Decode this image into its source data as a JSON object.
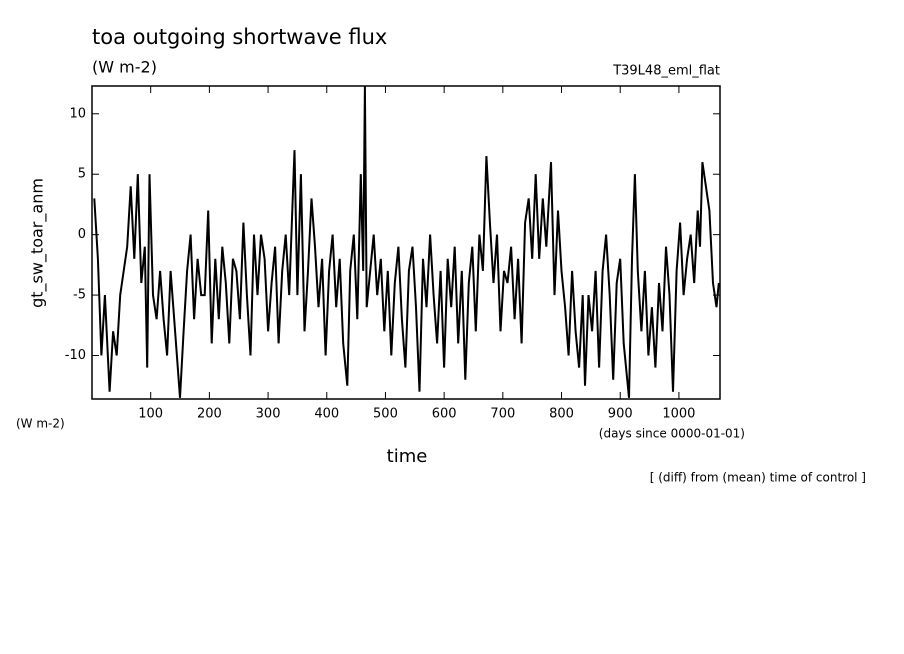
{
  "chart_data": {
    "type": "line",
    "title": "toa outgoing shortwave flux",
    "subtitle": "(W m-2)",
    "run_label": "T39L48_eml_flat",
    "ylabel": "gt_sw_toar_anm",
    "yunit": "(W m-2)",
    "xunit": "(days since 0000-01-01)",
    "xlabel": "time",
    "annotation": "[ (diff) from (mean) time of control ]",
    "xlim": [
      0,
      1070
    ],
    "ylim": [
      -13.6,
      12.3
    ],
    "xticks": [
      100,
      200,
      300,
      400,
      500,
      600,
      700,
      800,
      900,
      1000
    ],
    "yticks": [
      -10,
      -5,
      0,
      5,
      10
    ],
    "color": "#000000",
    "x": [
      4,
      10,
      16,
      22,
      30,
      36,
      42,
      48,
      54,
      60,
      66,
      72,
      78,
      84,
      90,
      94,
      98,
      104,
      110,
      116,
      122,
      128,
      134,
      140,
      150,
      156,
      162,
      168,
      174,
      180,
      186,
      192,
      198,
      204,
      210,
      216,
      222,
      228,
      234,
      240,
      246,
      252,
      258,
      264,
      270,
      276,
      282,
      288,
      294,
      300,
      306,
      312,
      318,
      324,
      330,
      336,
      345,
      350,
      356,
      362,
      368,
      374,
      380,
      386,
      392,
      398,
      404,
      410,
      416,
      422,
      428,
      435,
      440,
      446,
      452,
      458,
      462,
      465,
      468,
      474,
      480,
      486,
      492,
      498,
      504,
      510,
      516,
      522,
      528,
      534,
      540,
      546,
      552,
      558,
      564,
      570,
      576,
      582,
      588,
      594,
      600,
      606,
      612,
      618,
      624,
      630,
      636,
      642,
      648,
      654,
      660,
      666,
      672,
      678,
      684,
      690,
      696,
      702,
      708,
      714,
      720,
      726,
      732,
      738,
      744,
      750,
      756,
      762,
      768,
      774,
      782,
      788,
      794,
      800,
      806,
      812,
      818,
      824,
      830,
      836,
      840,
      846,
      852,
      858,
      864,
      870,
      876,
      882,
      888,
      894,
      900,
      906,
      915,
      920,
      925,
      930,
      936,
      942,
      948,
      954,
      960,
      966,
      972,
      978,
      984,
      990,
      996,
      1002,
      1008,
      1014,
      1020,
      1026,
      1032,
      1036,
      1040,
      1046,
      1052,
      1058,
      1064,
      1068
    ],
    "values": [
      3,
      -2,
      -10,
      -5,
      -13,
      -8,
      -10,
      -5,
      -3,
      -1,
      4,
      -2,
      5,
      -4,
      -1,
      -11,
      5,
      -5,
      -7,
      -3,
      -7,
      -10,
      -3,
      -7,
      -13.5,
      -8,
      -3,
      0,
      -7,
      -2,
      -5,
      -5,
      2,
      -9,
      -2,
      -7,
      -1,
      -4,
      -9,
      -2,
      -3,
      -7,
      1,
      -5,
      -10,
      0,
      -5,
      0,
      -2,
      -8,
      -4,
      -1,
      -9,
      -3,
      0,
      -5,
      7,
      -5,
      5,
      -8,
      -3,
      3,
      -1,
      -6,
      -2,
      -10,
      -3,
      0,
      -6,
      -2,
      -9,
      -12.5,
      -3,
      0,
      -7,
      5,
      -3,
      12.3,
      -6,
      -3,
      0,
      -5,
      -2,
      -8,
      -3,
      -10,
      -4,
      -1,
      -7,
      -11,
      -3,
      -1,
      -6,
      -13,
      -2,
      -6,
      0,
      -5,
      -9,
      -3,
      -11,
      -2,
      -6,
      -1,
      -9,
      -3,
      -12,
      -4,
      -1,
      -8,
      0,
      -3,
      6.5,
      1,
      -4,
      0,
      -8,
      -3,
      -4,
      -1,
      -7,
      -2,
      -9,
      1,
      3,
      -2,
      5,
      -2,
      3,
      -1,
      6,
      -5,
      2,
      -3,
      -6,
      -10,
      -3,
      -8,
      -11,
      -5,
      -12.5,
      -5,
      -8,
      -3,
      -11,
      -3,
      0,
      -5,
      -12,
      -4,
      -2,
      -9,
      -13.5,
      -2,
      5,
      -3,
      -8,
      -3,
      -10,
      -6,
      -11,
      -4,
      -8,
      -1,
      -5,
      -13,
      -3,
      1,
      -5,
      -2,
      0,
      -4,
      2,
      -1,
      6,
      4,
      2,
      -4,
      -6,
      -4
    ]
  }
}
